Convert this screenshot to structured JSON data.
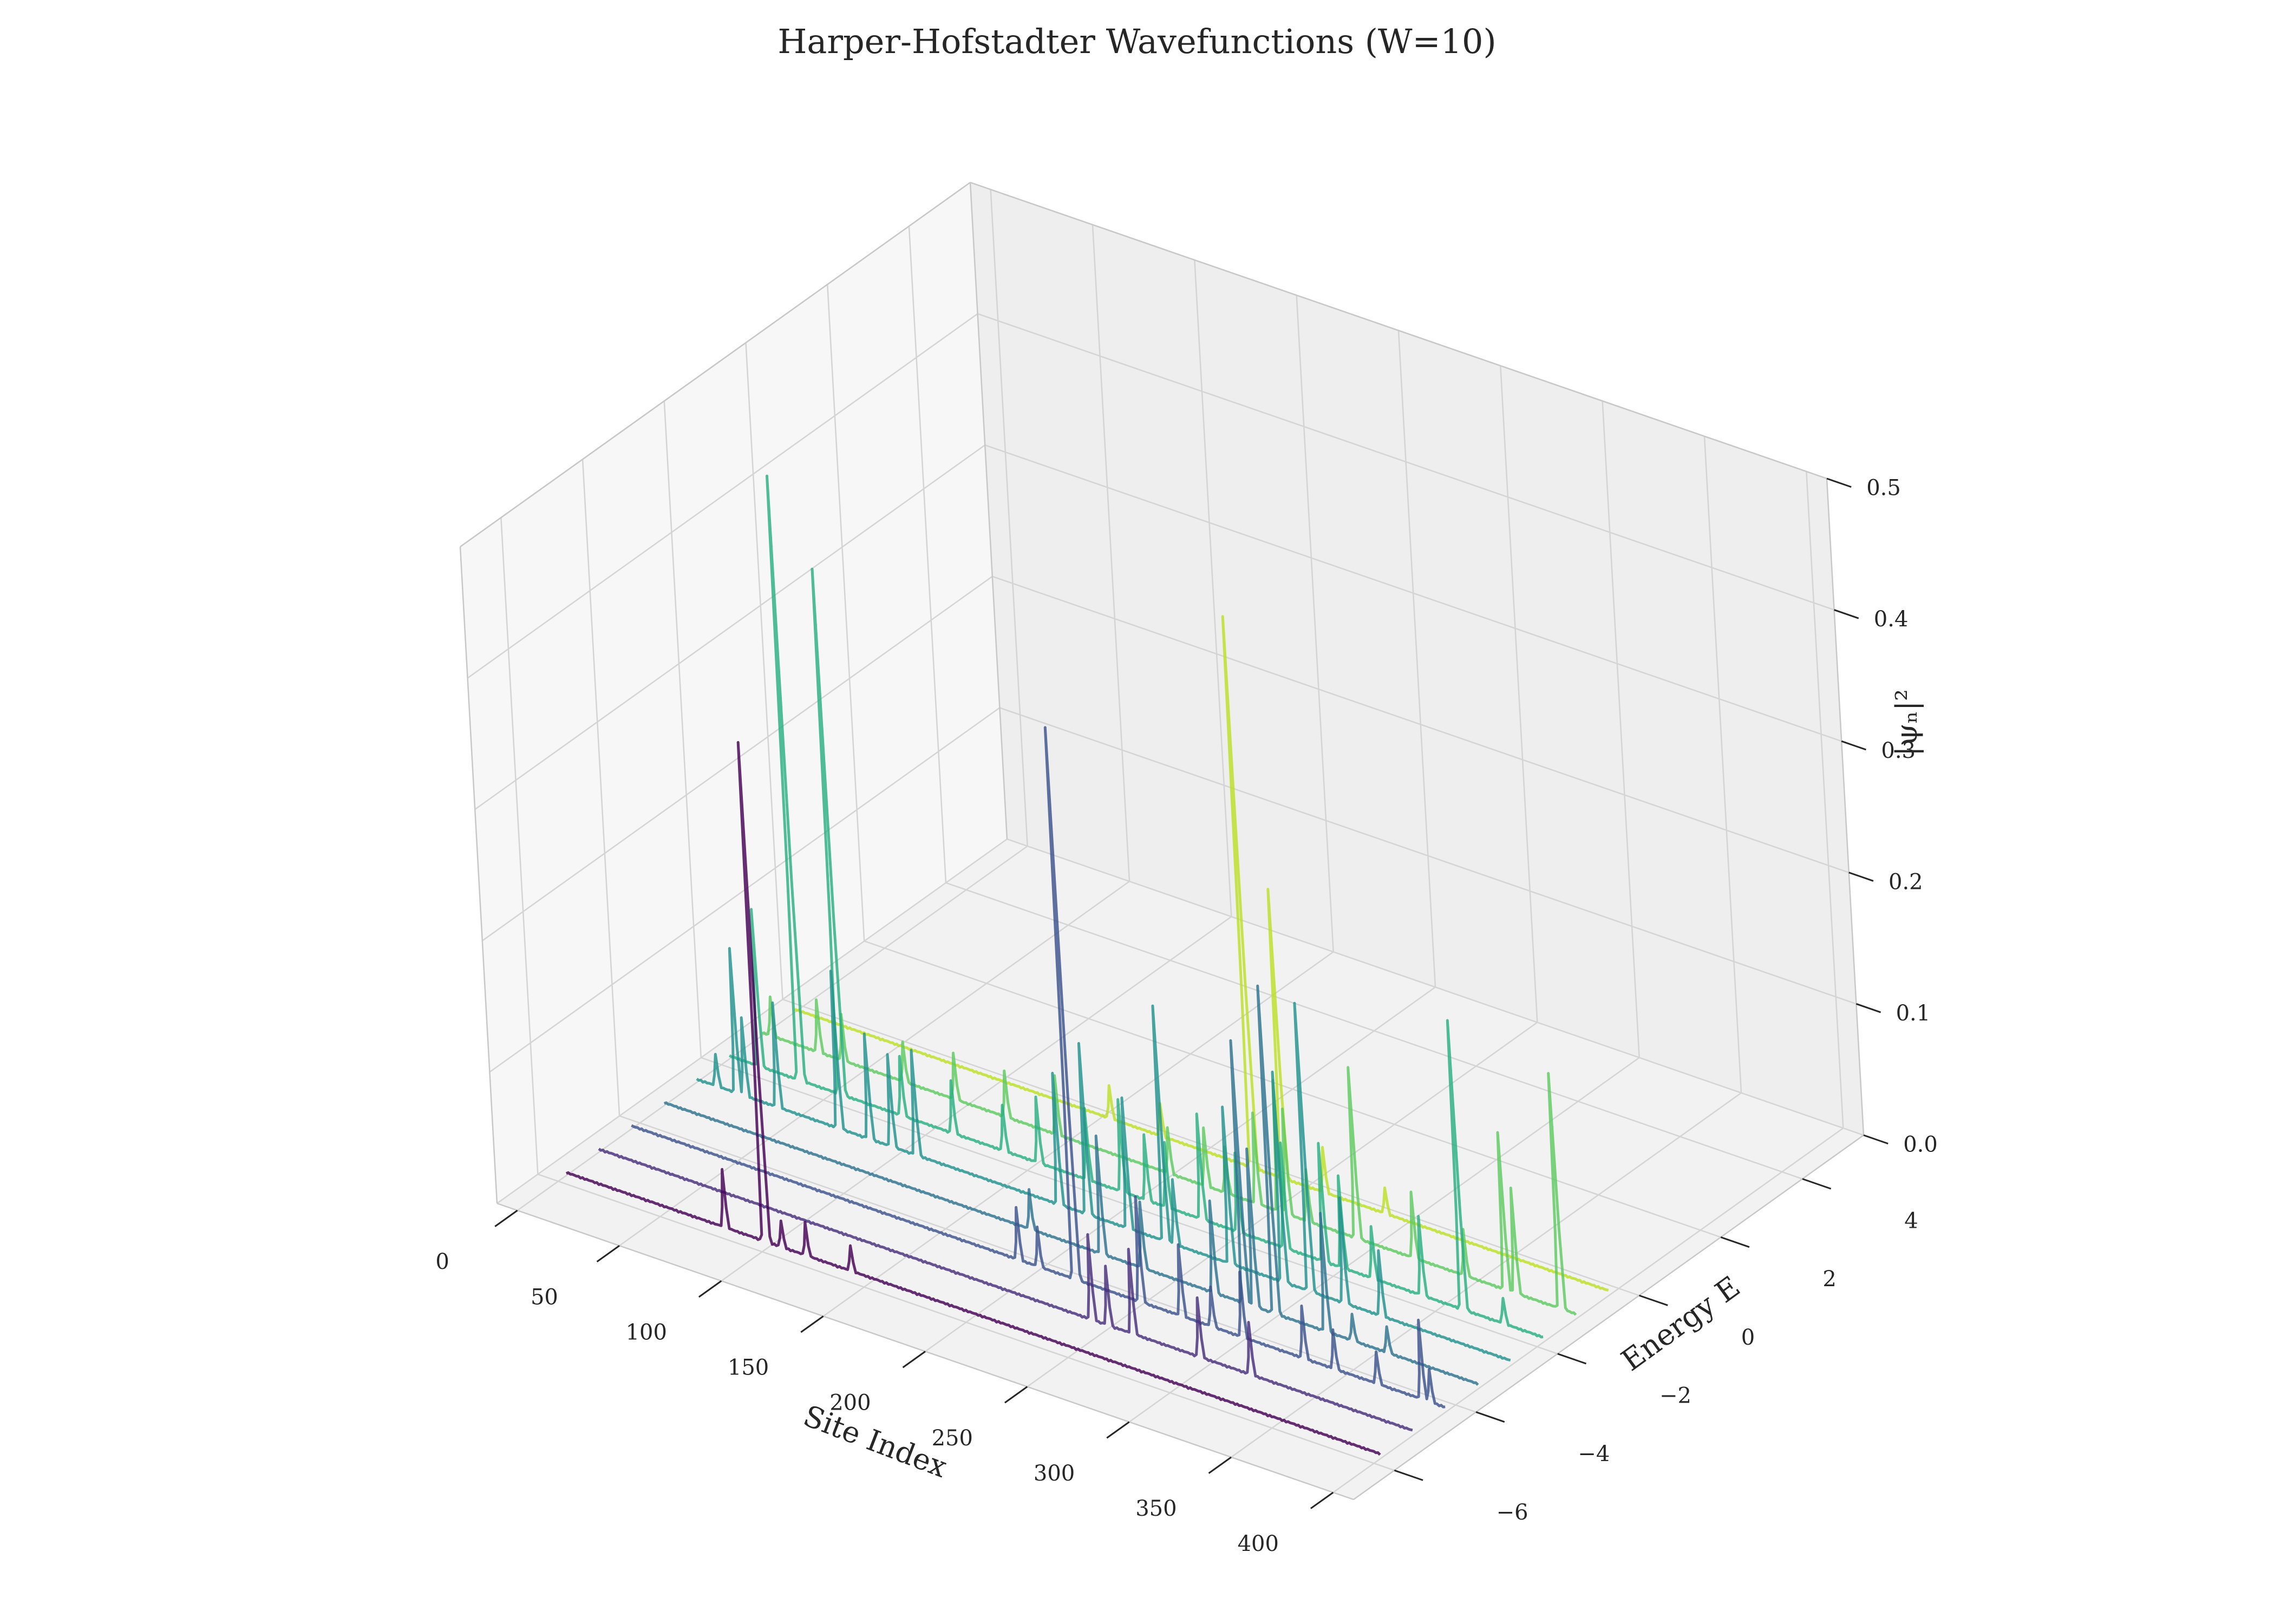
{
  "chart_data": {
    "type": "line",
    "projection": "3d",
    "title": "Harper-Hofstadter Wavefunctions (W=10)",
    "xlabel": "Site Index",
    "ylabel": "Energy E",
    "zlabel": "|ψₙ|²",
    "xlim": [
      -10,
      410
    ],
    "ylim": [
      -7,
      5.5
    ],
    "zlim": [
      0,
      0.5
    ],
    "xticks": [
      0,
      50,
      100,
      150,
      200,
      250,
      300,
      350,
      400
    ],
    "xtick_labels": [
      "0",
      "50",
      "100",
      "150",
      "200",
      "250",
      "300",
      "350",
      "400"
    ],
    "yticks": [
      -6,
      -4,
      -2,
      0,
      2,
      4
    ],
    "ytick_labels": [
      "−6",
      "−4",
      "−2",
      "0",
      "2",
      "4"
    ],
    "zticks": [
      0.0,
      0.1,
      0.2,
      0.3,
      0.4,
      0.5
    ],
    "ztick_labels": [
      "0.0",
      "0.1",
      "0.2",
      "0.3",
      "0.4",
      "0.5"
    ],
    "grid": true,
    "colormap": "viridis",
    "n_sites": 400,
    "series": [
      {
        "energy": -5.8,
        "color": "#440154",
        "peaks": [
          [
            78,
            0.045
          ],
          [
            98,
            0.38
          ],
          [
            106,
            0.02
          ],
          [
            118,
            0.025
          ],
          [
            140,
            0.02
          ]
        ]
      },
      {
        "energy": -5.0,
        "color": "#472d7b",
        "peaks": [
          [
            242,
            0.065
          ],
          [
            250,
            0.045
          ],
          [
            262,
            0.065
          ],
          [
            295,
            0.045
          ],
          [
            320,
            0.04
          ]
        ]
      },
      {
        "energy": -4.2,
        "color": "#3b528b",
        "peaks": [
          [
            190,
            0.04
          ],
          [
            200,
            0.03
          ],
          [
            218,
            0.42
          ],
          [
            250,
            0.08
          ],
          [
            270,
            0.055
          ],
          [
            285,
            0.03
          ],
          [
            300,
            0.05
          ],
          [
            330,
            0.04
          ],
          [
            345,
            0.03
          ],
          [
            366,
            0.025
          ],
          [
            388,
            0.06
          ],
          [
            392,
            0.025
          ]
        ]
      },
      {
        "energy": -3.4,
        "color": "#2c728e",
        "peaks": [
          [
            180,
            0.03
          ],
          [
            215,
            0.09
          ],
          [
            235,
            0.05
          ],
          [
            270,
            0.07
          ],
          [
            285,
            0.2
          ],
          [
            290,
            0.12
          ],
          [
            300,
            0.25
          ],
          [
            325,
            0.09
          ],
          [
            338,
            0.02
          ],
          [
            355,
            0.02
          ]
        ]
      },
      {
        "energy": -2.6,
        "color": "#21918c",
        "peaks": [
          [
            10,
            0.025
          ],
          [
            20,
            0.11
          ],
          [
            24,
            0.06
          ],
          [
            40,
            0.08
          ],
          [
            70,
            0.12
          ],
          [
            85,
            0.08
          ],
          [
            96,
            0.07
          ],
          [
            108,
            0.08
          ],
          [
            178,
            0.1
          ],
          [
            192,
            0.13
          ],
          [
            212,
            0.1
          ],
          [
            230,
            0.18
          ],
          [
            235,
            0.05
          ],
          [
            262,
            0.12
          ],
          [
            288,
            0.16
          ],
          [
            301,
            0.22
          ],
          [
            318,
            0.08
          ],
          [
            336,
            0.05
          ]
        ]
      },
      {
        "energy": -1.8,
        "color": "#28ae80",
        "peaks": [
          [
            15,
            0.12
          ],
          [
            35,
            0.46
          ],
          [
            55,
            0.4
          ],
          [
            85,
            0.045
          ],
          [
            110,
            0.04
          ],
          [
            135,
            0.035
          ],
          [
            152,
            0.05
          ],
          [
            176,
            0.055
          ],
          [
            193,
            0.07
          ],
          [
            205,
            0.05
          ],
          [
            215,
            0.05
          ],
          [
            232,
            0.08
          ],
          [
            250,
            0.06
          ],
          [
            273,
            0.08
          ],
          [
            292,
            0.09
          ],
          [
            301,
            0.07
          ],
          [
            316,
            0.04
          ],
          [
            340,
            0.06
          ],
          [
            360,
            0.22
          ],
          [
            380,
            0.02
          ]
        ]
      },
      {
        "energy": -1.0,
        "color": "#5ec962",
        "peaks": [
          [
            5,
            0.03
          ],
          [
            28,
            0.04
          ],
          [
            40,
            0.035
          ],
          [
            70,
            0.03
          ],
          [
            95,
            0.035
          ],
          [
            120,
            0.035
          ],
          [
            145,
            0.045
          ],
          [
            200,
            0.035
          ],
          [
            218,
            0.045
          ],
          [
            228,
            0.035
          ],
          [
            243,
            0.07
          ],
          [
            254,
            0.1
          ],
          [
            258,
            0.08
          ],
          [
            268,
            0.04
          ],
          [
            292,
            0.13
          ],
          [
            320,
            0.05
          ],
          [
            345,
            0.035
          ],
          [
            365,
            0.12
          ],
          [
            370,
            0.08
          ],
          [
            392,
            0.18
          ]
        ]
      },
      {
        "energy": -0.2,
        "color": "#bddf26",
        "peaks": [
          [
            155,
            0.025
          ],
          [
            180,
            0.025
          ],
          [
            225,
            0.42
          ],
          [
            240,
            0.22
          ],
          [
            260,
            0.035
          ],
          [
            290,
            0.02
          ]
        ]
      }
    ]
  }
}
